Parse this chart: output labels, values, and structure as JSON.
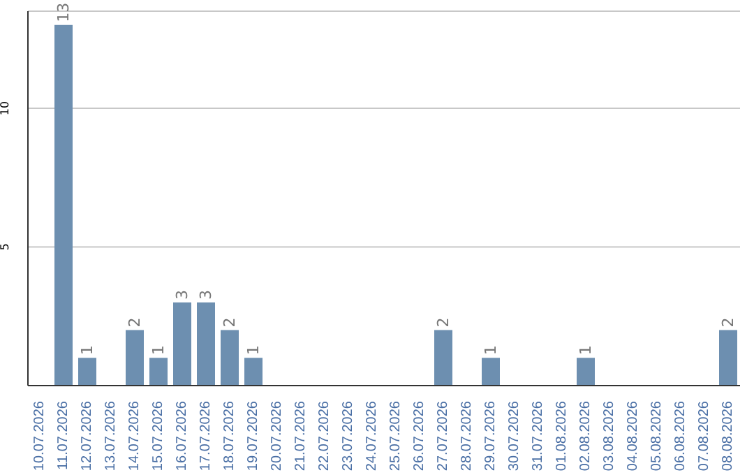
{
  "chart_data": {
    "type": "bar",
    "categories": [
      "10.07.2026",
      "11.07.2026",
      "12.07.2026",
      "13.07.2026",
      "14.07.2026",
      "15.07.2026",
      "16.07.2026",
      "17.07.2026",
      "18.07.2026",
      "19.07.2026",
      "20.07.2026",
      "21.07.2026",
      "22.07.2026",
      "23.07.2026",
      "24.07.2026",
      "25.07.2026",
      "26.07.2026",
      "27.07.2026",
      "28.07.2026",
      "29.07.2026",
      "30.07.2026",
      "31.07.2026",
      "01.08.2026",
      "02.08.2026",
      "03.08.2026",
      "04.08.2026",
      "05.08.2026",
      "06.08.2026",
      "07.08.2026",
      "08.08.2026"
    ],
    "values": [
      0,
      13,
      1,
      0,
      2,
      1,
      3,
      3,
      2,
      1,
      0,
      0,
      0,
      0,
      0,
      0,
      0,
      2,
      0,
      1,
      0,
      0,
      0,
      1,
      0,
      0,
      0,
      0,
      0,
      2
    ],
    "value_labels": [
      null,
      "13",
      "1",
      null,
      "2",
      "1",
      "3",
      "3",
      "2",
      "1",
      null,
      null,
      null,
      null,
      null,
      null,
      null,
      "2",
      null,
      "1",
      null,
      null,
      null,
      "1",
      null,
      null,
      null,
      null,
      null,
      "2"
    ],
    "color": "#6d8fb0",
    "ylim": [
      0,
      13.5
    ],
    "yticks": [
      5,
      10
    ],
    "grid": "y"
  }
}
